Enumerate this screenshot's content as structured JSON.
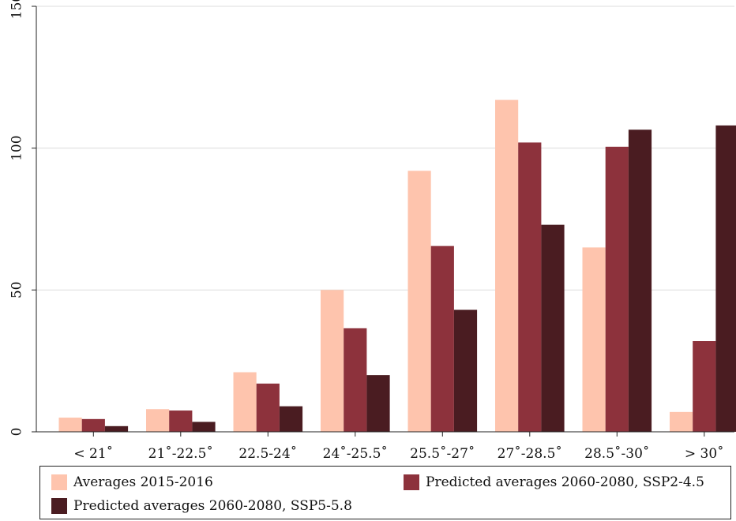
{
  "chart_data": {
    "type": "bar",
    "categories": [
      "< 21˚",
      "21˚-22.5˚",
      "22.5-24˚",
      "24˚-25.5˚",
      "25.5˚-27˚",
      "27˚-28.5˚",
      "28.5˚-30˚",
      "> 30˚"
    ],
    "series": [
      {
        "name": "Averages 2015-2016",
        "color": "#fec4ad",
        "values": [
          5,
          8,
          21,
          50,
          92,
          117,
          65,
          7
        ]
      },
      {
        "name": "Predicted averages 2060-2080, SSP2-4.5",
        "color": "#8d323c",
        "values": [
          4.5,
          7.5,
          17,
          36.5,
          65.5,
          102,
          100.5,
          32
        ]
      },
      {
        "name": "Predicted averages 2060-2080, SSP5-5.8",
        "color": "#4a1c21",
        "values": [
          2,
          3.5,
          9,
          20,
          43,
          73,
          106.5,
          108
        ]
      }
    ],
    "title": "",
    "xlabel": "",
    "ylabel": "",
    "ylim": [
      0,
      150
    ],
    "yticks": [
      0,
      50,
      100,
      150
    ],
    "grid": true,
    "legend_position": "bottom"
  }
}
